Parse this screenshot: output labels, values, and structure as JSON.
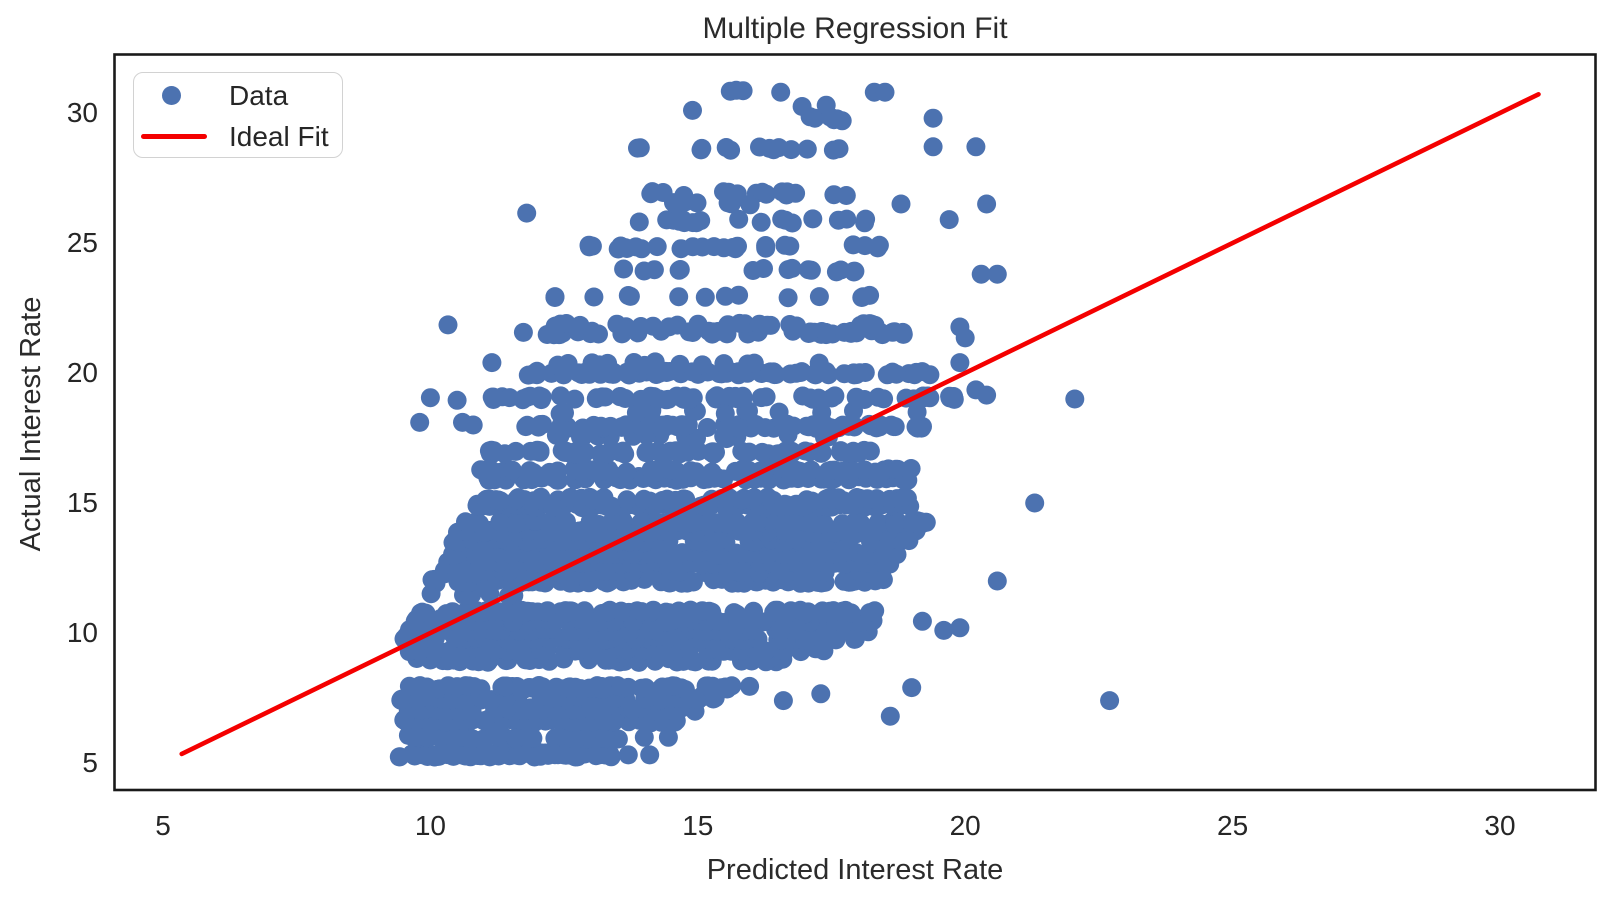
{
  "title": "Multiple Regression Fit",
  "x_axis_label": "Predicted Interest Rate",
  "y_axis_label": "Actual Interest Rate",
  "legend": {
    "data_label": "Data",
    "fit_label": "Ideal Fit"
  },
  "colors": {
    "dot": "#4c72b0",
    "line": "#f40000",
    "text": "#262626",
    "spine": "#1a1a1a",
    "legend_border": "#d2d2d2",
    "background": "#ffffff"
  },
  "chart_data": {
    "type": "scatter",
    "title": "Multiple Regression Fit",
    "xlabel": "Predicted Interest Rate",
    "ylabel": "Actual Interest Rate",
    "xlim": [
      4.1,
      31.8
    ],
    "ylim": [
      3.85,
      32.2
    ],
    "xticks": [
      5,
      10,
      15,
      20,
      25,
      30
    ],
    "yticks": [
      5,
      10,
      15,
      20,
      25,
      30
    ],
    "grid": false,
    "legend_position": "upper left",
    "series": [
      {
        "name": "Data",
        "kind": "scatter",
        "marker": "circle",
        "color": "#4c72b0"
      },
      {
        "name": "Ideal Fit",
        "kind": "line",
        "color": "#f40000",
        "x": [
          5.35,
          30.72
        ],
        "y": [
          5.35,
          30.72
        ]
      }
    ],
    "scatter_generation": {
      "comment": "stripes = [y_rate, x_min, x_max, n_points]; actual data are loan interest rates quantized to discrete values",
      "seed": 7,
      "y_jitter": 0.08,
      "stripes": [
        [
          5.31,
          9.38,
          13.45,
          105
        ],
        [
          5.99,
          9.45,
          13.6,
          55
        ],
        [
          6.62,
          9.5,
          14.6,
          65
        ],
        [
          7.05,
          9.55,
          15.0,
          70
        ],
        [
          7.49,
          9.42,
          15.4,
          72
        ],
        [
          7.9,
          9.6,
          16.0,
          78
        ],
        [
          8.95,
          9.6,
          16.6,
          55
        ],
        [
          9.35,
          9.5,
          17.5,
          85
        ],
        [
          9.8,
          9.5,
          18.0,
          115
        ],
        [
          10.12,
          9.6,
          18.3,
          125
        ],
        [
          10.48,
          9.7,
          18.4,
          115
        ],
        [
          10.8,
          9.8,
          18.45,
          105
        ],
        [
          11.44,
          9.9,
          11.6,
          7
        ],
        [
          11.99,
          10.0,
          18.5,
          100
        ],
        [
          12.35,
          10.2,
          18.6,
          95
        ],
        [
          12.7,
          10.3,
          18.7,
          100
        ],
        [
          13.05,
          10.4,
          18.9,
          105
        ],
        [
          13.55,
          10.4,
          19.0,
          110
        ],
        [
          13.9,
          10.5,
          19.2,
          110
        ],
        [
          14.25,
          10.6,
          19.3,
          85
        ],
        [
          14.9,
          10.8,
          19.0,
          100
        ],
        [
          15.15,
          11.0,
          19.1,
          70
        ],
        [
          15.95,
          10.8,
          19.0,
          90
        ],
        [
          16.25,
          10.8,
          19.0,
          70
        ],
        [
          16.95,
          10.95,
          18.6,
          65
        ],
        [
          17.55,
          12.3,
          17.6,
          18
        ],
        [
          17.95,
          11.7,
          19.3,
          80
        ],
        [
          18.5,
          12.4,
          18.4,
          14
        ],
        [
          19.05,
          11.1,
          19.8,
          72
        ],
        [
          20.0,
          11.7,
          19.4,
          78
        ],
        [
          20.35,
          11.9,
          17.5,
          14
        ],
        [
          21.55,
          11.7,
          19.0,
          48
        ],
        [
          21.85,
          12.2,
          18.4,
          26
        ],
        [
          22.95,
          12.3,
          18.3,
          14
        ],
        [
          23.95,
          13.3,
          18.3,
          16
        ],
        [
          24.85,
          12.9,
          18.6,
          26
        ],
        [
          25.85,
          13.9,
          18.2,
          20
        ],
        [
          26.5,
          14.0,
          16.0,
          8
        ],
        [
          26.9,
          13.5,
          18.2,
          18
        ],
        [
          28.65,
          13.2,
          18.5,
          14
        ],
        [
          29.8,
          16.3,
          17.8,
          5
        ],
        [
          30.8,
          15.6,
          16.1,
          3
        ]
      ],
      "extra_points": [
        [
          13.7,
          5.31
        ],
        [
          14.1,
          5.31
        ],
        [
          14.0,
          5.99
        ],
        [
          14.45,
          5.99
        ],
        [
          16.6,
          7.4
        ],
        [
          17.3,
          7.66
        ],
        [
          19.0,
          7.9
        ],
        [
          18.6,
          6.8
        ],
        [
          22.7,
          7.4
        ],
        [
          19.2,
          10.45
        ],
        [
          19.6,
          10.1
        ],
        [
          19.9,
          10.2
        ],
        [
          20.6,
          12.0
        ],
        [
          21.3,
          15.0
        ],
        [
          10.0,
          19.05
        ],
        [
          10.5,
          18.95
        ],
        [
          9.8,
          18.1
        ],
        [
          10.6,
          18.1
        ],
        [
          10.8,
          18.0
        ],
        [
          19.9,
          20.4
        ],
        [
          11.15,
          20.4
        ],
        [
          20.2,
          19.35
        ],
        [
          20.4,
          19.15
        ],
        [
          22.05,
          19.0
        ],
        [
          19.1,
          18.5
        ],
        [
          10.33,
          21.85
        ],
        [
          19.9,
          21.77
        ],
        [
          20.0,
          21.35
        ],
        [
          20.3,
          23.8
        ],
        [
          20.6,
          23.8
        ],
        [
          11.8,
          26.15
        ],
        [
          19.7,
          25.9
        ],
        [
          20.4,
          26.5
        ],
        [
          18.8,
          26.5
        ],
        [
          19.4,
          28.7
        ],
        [
          20.2,
          28.7
        ],
        [
          14.9,
          30.1
        ],
        [
          19.4,
          29.8
        ],
        [
          17.7,
          29.7
        ],
        [
          16.55,
          30.8
        ],
        [
          16.95,
          30.25
        ],
        [
          17.4,
          30.3
        ],
        [
          18.3,
          30.8
        ],
        [
          18.5,
          30.8
        ]
      ]
    }
  }
}
